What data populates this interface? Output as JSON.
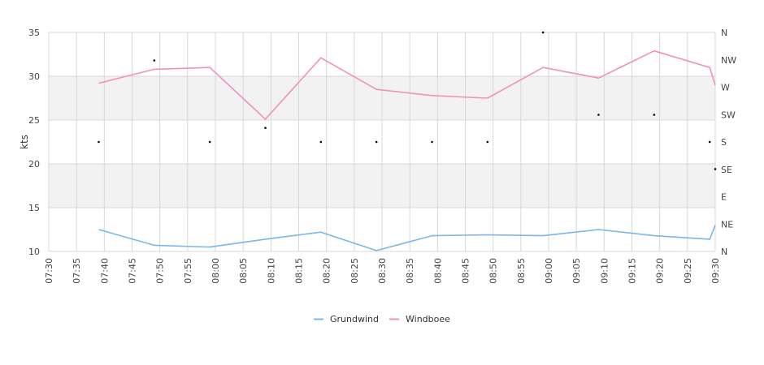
{
  "chart_data": {
    "type": "line",
    "ylabel": "kts",
    "ylim": [
      10,
      35
    ],
    "yticks": [
      10,
      15,
      20,
      25,
      30,
      35
    ],
    "x_ticks": [
      "07:30",
      "07:35",
      "07:40",
      "07:45",
      "07:50",
      "07:55",
      "08:00",
      "08:05",
      "08:10",
      "08:15",
      "08:20",
      "08:25",
      "08:30",
      "08:35",
      "08:40",
      "08:45",
      "08:50",
      "08:55",
      "09:00",
      "09:05",
      "09:10",
      "09:15",
      "09:20",
      "09:25",
      "09:30"
    ],
    "right_axis_labels": [
      "N",
      "NE",
      "E",
      "SE",
      "S",
      "SW",
      "W",
      "NW",
      "N"
    ],
    "grid": true,
    "legend_position": "bottom-center",
    "series": [
      {
        "name": "Grundwind",
        "color": "#7cb5ec",
        "x": [
          "07:39",
          "07:49",
          "07:59",
          "08:09",
          "08:19",
          "08:29",
          "08:39",
          "08:49",
          "08:59",
          "09:09",
          "09:19",
          "09:29",
          "09:30"
        ],
        "values": [
          12.5,
          10.7,
          10.5,
          11.4,
          12.2,
          10.1,
          11.8,
          11.9,
          11.8,
          12.5,
          11.8,
          11.4,
          13.0
        ]
      },
      {
        "name": "Windboee",
        "color": "#f28fbf",
        "x": [
          "07:39",
          "07:49",
          "07:59",
          "08:09",
          "08:19",
          "08:29",
          "08:39",
          "08:49",
          "08:59",
          "09:09",
          "09:19",
          "09:29",
          "09:30"
        ],
        "values": [
          29.2,
          30.8,
          31.0,
          25.1,
          32.1,
          28.5,
          27.8,
          27.5,
          31.0,
          29.8,
          32.9,
          31.0,
          29.0
        ]
      }
    ],
    "direction_points": [
      {
        "x": "07:39",
        "value": 22.5
      },
      {
        "x": "07:49",
        "value": 31.8
      },
      {
        "x": "07:59",
        "value": 22.5
      },
      {
        "x": "08:09",
        "value": 24.1
      },
      {
        "x": "08:19",
        "value": 22.5
      },
      {
        "x": "08:29",
        "value": 22.5
      },
      {
        "x": "08:39",
        "value": 22.5
      },
      {
        "x": "08:49",
        "value": 22.5
      },
      {
        "x": "08:59",
        "value": 35.0
      },
      {
        "x": "09:09",
        "value": 25.6
      },
      {
        "x": "09:19",
        "value": 25.6
      },
      {
        "x": "09:29",
        "value": 22.5
      },
      {
        "x": "09:30",
        "value": 19.4
      }
    ],
    "band_color": "#f2f2f2",
    "grid_color": "#d8d8d8"
  }
}
